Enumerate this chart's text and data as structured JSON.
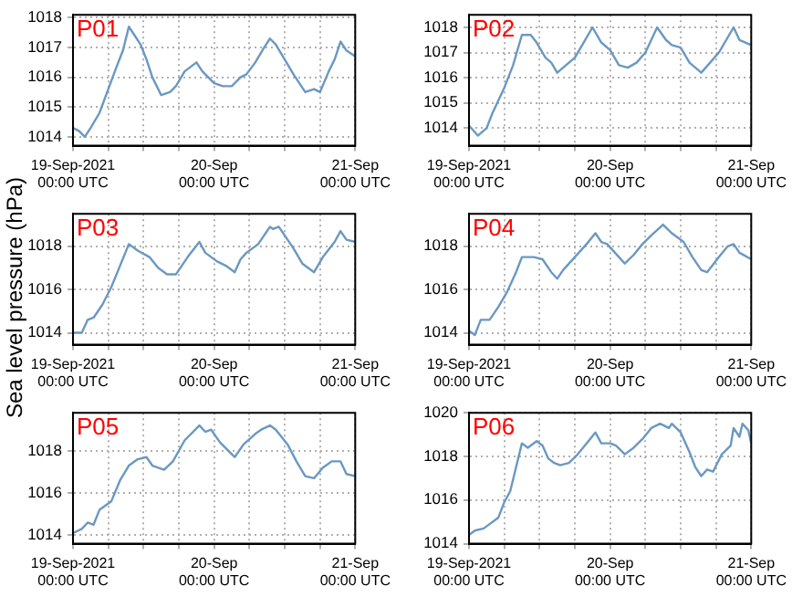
{
  "chart_data": [
    {
      "type": "line",
      "title": "P01",
      "color": "#6a98c2",
      "x": [
        "2021-09-19T00:00",
        "2021-09-19T01:00",
        "2021-09-19T02:00",
        "2021-09-19T03:00",
        "2021-09-19T04:30",
        "2021-09-19T06:00",
        "2021-09-19T07:30",
        "2021-09-19T08:30",
        "2021-09-19T09:30",
        "2021-09-19T10:30",
        "2021-09-19T11:30",
        "2021-09-19T12:30",
        "2021-09-19T13:30",
        "2021-09-19T15:00",
        "2021-09-19T16:30",
        "2021-09-19T17:30",
        "2021-09-19T19:00",
        "2021-09-19T21:00",
        "2021-09-19T22:00",
        "2021-09-20T00:00",
        "2021-09-20T01:30",
        "2021-09-20T03:00",
        "2021-09-20T04:30",
        "2021-09-20T05:30",
        "2021-09-20T07:00",
        "2021-09-20T08:30",
        "2021-09-20T09:30",
        "2021-09-20T10:30",
        "2021-09-20T12:00",
        "2021-09-20T13:30",
        "2021-09-20T15:30",
        "2021-09-20T17:00",
        "2021-09-20T18:00",
        "2021-09-20T19:30",
        "2021-09-20T20:30",
        "2021-09-20T21:30",
        "2021-09-20T22:30",
        "2021-09-21T00:00"
      ],
      "values": [
        1014.3,
        1014.2,
        1014.0,
        1014.3,
        1014.8,
        1015.6,
        1016.4,
        1016.9,
        1017.7,
        1017.4,
        1017.1,
        1016.6,
        1016.0,
        1015.4,
        1015.5,
        1015.7,
        1016.2,
        1016.5,
        1016.2,
        1015.8,
        1015.7,
        1015.7,
        1016.0,
        1016.1,
        1016.5,
        1017.0,
        1017.3,
        1017.1,
        1016.6,
        1016.1,
        1015.5,
        1015.6,
        1015.5,
        1016.2,
        1016.6,
        1017.2,
        1016.9,
        1016.7
      ],
      "xlim": [
        "2021-09-19T00:00",
        "2021-09-21T00:00"
      ],
      "ylim": [
        1013.7,
        1018.1
      ],
      "yticks": [
        1014,
        1015,
        1016,
        1017,
        1018
      ],
      "xticks": [
        {
          "value": "2021-09-19T00:00",
          "label": "19-Sep-2021\n00:00 UTC"
        },
        {
          "value": "2021-09-19T06:00",
          "label": null
        },
        {
          "value": "2021-09-19T12:00",
          "label": null
        },
        {
          "value": "2021-09-19T18:00",
          "label": null
        },
        {
          "value": "2021-09-20T00:00",
          "label": "20-Sep\n00:00 UTC"
        },
        {
          "value": "2021-09-20T06:00",
          "label": null
        },
        {
          "value": "2021-09-20T12:00",
          "label": null
        },
        {
          "value": "2021-09-20T18:00",
          "label": null
        },
        {
          "value": "2021-09-21T00:00",
          "label": "21-Sep\n00:00 UTC"
        }
      ],
      "grid": true,
      "legend": false
    },
    {
      "type": "line",
      "title": "P02",
      "color": "#6a98c2",
      "x": [
        "2021-09-19T00:00",
        "2021-09-19T01:30",
        "2021-09-19T03:00",
        "2021-09-19T04:00",
        "2021-09-19T06:00",
        "2021-09-19T07:30",
        "2021-09-19T09:00",
        "2021-09-19T10:30",
        "2021-09-19T11:30",
        "2021-09-19T13:00",
        "2021-09-19T14:00",
        "2021-09-19T15:00",
        "2021-09-19T16:30",
        "2021-09-19T18:00",
        "2021-09-19T19:30",
        "2021-09-19T21:00",
        "2021-09-19T22:30",
        "2021-09-20T00:00",
        "2021-09-20T01:30",
        "2021-09-20T03:00",
        "2021-09-20T04:30",
        "2021-09-20T06:00",
        "2021-09-20T07:00",
        "2021-09-20T08:00",
        "2021-09-20T09:30",
        "2021-09-20T10:30",
        "2021-09-20T12:00",
        "2021-09-20T13:30",
        "2021-09-20T15:30",
        "2021-09-20T17:00",
        "2021-09-20T18:30",
        "2021-09-20T20:00",
        "2021-09-20T21:00",
        "2021-09-20T22:00",
        "2021-09-21T00:00"
      ],
      "values": [
        1014.1,
        1013.7,
        1014.0,
        1014.6,
        1015.6,
        1016.5,
        1017.7,
        1017.7,
        1017.4,
        1016.8,
        1016.6,
        1016.2,
        1016.5,
        1016.8,
        1017.4,
        1018.0,
        1017.4,
        1017.1,
        1016.5,
        1016.4,
        1016.6,
        1017.0,
        1017.5,
        1018.0,
        1017.5,
        1017.3,
        1017.2,
        1016.6,
        1016.2,
        1016.6,
        1017.0,
        1017.6,
        1018.0,
        1017.5,
        1017.3
      ],
      "xlim": [
        "2021-09-19T00:00",
        "2021-09-21T00:00"
      ],
      "ylim": [
        1013.3,
        1018.5
      ],
      "yticks": [
        1014,
        1015,
        1016,
        1017,
        1018
      ],
      "xticks": [
        {
          "value": "2021-09-19T00:00",
          "label": "19-Sep-2021\n00:00 UTC"
        },
        {
          "value": "2021-09-19T06:00",
          "label": null
        },
        {
          "value": "2021-09-19T12:00",
          "label": null
        },
        {
          "value": "2021-09-19T18:00",
          "label": null
        },
        {
          "value": "2021-09-20T00:00",
          "label": "20-Sep\n00:00 UTC"
        },
        {
          "value": "2021-09-20T06:00",
          "label": null
        },
        {
          "value": "2021-09-20T12:00",
          "label": null
        },
        {
          "value": "2021-09-20T18:00",
          "label": null
        },
        {
          "value": "2021-09-21T00:00",
          "label": "21-Sep\n00:00 UTC"
        }
      ],
      "grid": true,
      "legend": false
    },
    {
      "type": "line",
      "title": "P03",
      "ylabel": "Sea level pressure (hPa)",
      "color": "#6a98c2",
      "x": [
        "2021-09-19T00:00",
        "2021-09-19T01:30",
        "2021-09-19T02:30",
        "2021-09-19T03:30",
        "2021-09-19T05:00",
        "2021-09-19T06:30",
        "2021-09-19T08:00",
        "2021-09-19T09:30",
        "2021-09-19T11:00",
        "2021-09-19T13:00",
        "2021-09-19T14:30",
        "2021-09-19T16:00",
        "2021-09-19T17:30",
        "2021-09-19T19:30",
        "2021-09-19T21:30",
        "2021-09-19T22:30",
        "2021-09-20T00:30",
        "2021-09-20T02:00",
        "2021-09-20T03:30",
        "2021-09-20T04:30",
        "2021-09-20T05:30",
        "2021-09-20T07:30",
        "2021-09-20T08:30",
        "2021-09-20T09:30",
        "2021-09-20T10:00",
        "2021-09-20T11:00",
        "2021-09-20T12:00",
        "2021-09-20T13:30",
        "2021-09-20T15:00",
        "2021-09-20T17:00",
        "2021-09-20T18:30",
        "2021-09-20T20:30",
        "2021-09-20T21:30",
        "2021-09-20T22:30",
        "2021-09-21T00:00"
      ],
      "values": [
        1014.0,
        1014.0,
        1014.6,
        1014.7,
        1015.3,
        1016.1,
        1017.1,
        1018.1,
        1017.8,
        1017.5,
        1017.0,
        1016.7,
        1016.7,
        1017.5,
        1018.2,
        1017.7,
        1017.3,
        1017.1,
        1016.8,
        1017.4,
        1017.7,
        1018.1,
        1018.5,
        1018.9,
        1018.8,
        1018.9,
        1018.5,
        1017.9,
        1017.2,
        1016.8,
        1017.5,
        1018.2,
        1018.7,
        1018.3,
        1018.2
      ],
      "xlim": [
        "2021-09-19T00:00",
        "2021-09-21T00:00"
      ],
      "ylim": [
        1013.45,
        1019.5
      ],
      "yticks": [
        1014,
        1016,
        1018
      ],
      "xticks": [
        {
          "value": "2021-09-19T00:00",
          "label": "19-Sep-2021\n00:00 UTC"
        },
        {
          "value": "2021-09-19T06:00",
          "label": null
        },
        {
          "value": "2021-09-19T12:00",
          "label": null
        },
        {
          "value": "2021-09-19T18:00",
          "label": null
        },
        {
          "value": "2021-09-20T00:00",
          "label": "20-Sep\n00:00 UTC"
        },
        {
          "value": "2021-09-20T06:00",
          "label": null
        },
        {
          "value": "2021-09-20T12:00",
          "label": null
        },
        {
          "value": "2021-09-20T18:00",
          "label": null
        },
        {
          "value": "2021-09-21T00:00",
          "label": "21-Sep\n00:00 UTC"
        }
      ],
      "grid": true,
      "legend": false
    },
    {
      "type": "line",
      "title": "P04",
      "color": "#6a98c2",
      "x": [
        "2021-09-19T00:00",
        "2021-09-19T01:00",
        "2021-09-19T02:00",
        "2021-09-19T03:30",
        "2021-09-19T05:00",
        "2021-09-19T06:30",
        "2021-09-19T08:00",
        "2021-09-19T09:00",
        "2021-09-19T11:00",
        "2021-09-19T12:30",
        "2021-09-19T14:00",
        "2021-09-19T15:00",
        "2021-09-19T16:00",
        "2021-09-19T18:00",
        "2021-09-19T20:00",
        "2021-09-19T21:30",
        "2021-09-19T22:30",
        "2021-09-19T23:30",
        "2021-09-20T01:30",
        "2021-09-20T02:30",
        "2021-09-20T04:00",
        "2021-09-20T05:30",
        "2021-09-20T07:00",
        "2021-09-20T09:00",
        "2021-09-20T10:30",
        "2021-09-20T12:30",
        "2021-09-20T14:00",
        "2021-09-20T15:30",
        "2021-09-20T16:30",
        "2021-09-20T18:30",
        "2021-09-20T20:00",
        "2021-09-20T21:00",
        "2021-09-20T22:00",
        "2021-09-21T00:00"
      ],
      "values": [
        1014.1,
        1013.9,
        1014.6,
        1014.6,
        1015.2,
        1015.9,
        1016.8,
        1017.5,
        1017.5,
        1017.4,
        1016.8,
        1016.5,
        1016.9,
        1017.5,
        1018.1,
        1018.6,
        1018.2,
        1018.1,
        1017.5,
        1017.2,
        1017.6,
        1018.1,
        1018.5,
        1019.0,
        1018.6,
        1018.2,
        1017.5,
        1016.9,
        1016.8,
        1017.5,
        1018.0,
        1018.1,
        1017.7,
        1017.4
      ],
      "xlim": [
        "2021-09-19T00:00",
        "2021-09-21T00:00"
      ],
      "ylim": [
        1013.45,
        1019.5
      ],
      "yticks": [
        1014,
        1016,
        1018
      ],
      "xticks": [
        {
          "value": "2021-09-19T00:00",
          "label": "19-Sep-2021\n00:00 UTC"
        },
        {
          "value": "2021-09-19T06:00",
          "label": null
        },
        {
          "value": "2021-09-19T12:00",
          "label": null
        },
        {
          "value": "2021-09-19T18:00",
          "label": null
        },
        {
          "value": "2021-09-20T00:00",
          "label": "20-Sep\n00:00 UTC"
        },
        {
          "value": "2021-09-20T06:00",
          "label": null
        },
        {
          "value": "2021-09-20T12:00",
          "label": null
        },
        {
          "value": "2021-09-20T18:00",
          "label": null
        },
        {
          "value": "2021-09-21T00:00",
          "label": "21-Sep\n00:00 UTC"
        }
      ],
      "grid": true,
      "legend": false
    },
    {
      "type": "line",
      "title": "P05",
      "color": "#6a98c2",
      "x": [
        "2021-09-19T00:00",
        "2021-09-19T01:30",
        "2021-09-19T02:30",
        "2021-09-19T03:30",
        "2021-09-19T04:30",
        "2021-09-19T06:30",
        "2021-09-19T08:00",
        "2021-09-19T09:30",
        "2021-09-19T11:00",
        "2021-09-19T12:30",
        "2021-09-19T13:30",
        "2021-09-19T15:30",
        "2021-09-19T17:00",
        "2021-09-19T19:00",
        "2021-09-19T21:30",
        "2021-09-19T22:30",
        "2021-09-19T23:30",
        "2021-09-20T01:00",
        "2021-09-20T03:30",
        "2021-09-20T05:00",
        "2021-09-20T07:00",
        "2021-09-20T08:00",
        "2021-09-20T09:30",
        "2021-09-20T10:30",
        "2021-09-20T12:30",
        "2021-09-20T14:00",
        "2021-09-20T15:30",
        "2021-09-20T17:00",
        "2021-09-20T18:30",
        "2021-09-20T20:00",
        "2021-09-20T21:30",
        "2021-09-20T22:30",
        "2021-09-21T00:00"
      ],
      "values": [
        1014.1,
        1014.3,
        1014.6,
        1014.5,
        1015.2,
        1015.6,
        1016.6,
        1017.3,
        1017.6,
        1017.7,
        1017.3,
        1017.1,
        1017.5,
        1018.5,
        1019.2,
        1018.9,
        1019.0,
        1018.4,
        1017.7,
        1018.3,
        1018.8,
        1019.0,
        1019.2,
        1019.0,
        1018.3,
        1017.5,
        1016.8,
        1016.7,
        1017.2,
        1017.5,
        1017.5,
        1016.9,
        1016.8
      ],
      "xlim": [
        "2021-09-19T00:00",
        "2021-09-21T00:00"
      ],
      "ylim": [
        1013.6,
        1019.8
      ],
      "yticks": [
        1014,
        1016,
        1018
      ],
      "xticks": [
        {
          "value": "2021-09-19T00:00",
          "label": "19-Sep-2021\n00:00 UTC"
        },
        {
          "value": "2021-09-19T06:00",
          "label": null
        },
        {
          "value": "2021-09-19T12:00",
          "label": null
        },
        {
          "value": "2021-09-19T18:00",
          "label": null
        },
        {
          "value": "2021-09-20T00:00",
          "label": "20-Sep\n00:00 UTC"
        },
        {
          "value": "2021-09-20T06:00",
          "label": null
        },
        {
          "value": "2021-09-20T12:00",
          "label": null
        },
        {
          "value": "2021-09-20T18:00",
          "label": null
        },
        {
          "value": "2021-09-21T00:00",
          "label": "21-Sep\n00:00 UTC"
        }
      ],
      "grid": true,
      "legend": false
    },
    {
      "type": "line",
      "title": "P06",
      "color": "#6a98c2",
      "x": [
        "2021-09-19T00:00",
        "2021-09-19T01:00",
        "2021-09-19T02:30",
        "2021-09-19T03:30",
        "2021-09-19T05:00",
        "2021-09-19T06:00",
        "2021-09-19T07:00",
        "2021-09-19T08:00",
        "2021-09-19T09:00",
        "2021-09-19T10:00",
        "2021-09-19T11:30",
        "2021-09-19T12:30",
        "2021-09-19T13:30",
        "2021-09-19T14:30",
        "2021-09-19T15:30",
        "2021-09-19T17:00",
        "2021-09-19T18:30",
        "2021-09-19T20:00",
        "2021-09-19T21:30",
        "2021-09-19T22:30",
        "2021-09-20T00:00",
        "2021-09-20T01:00",
        "2021-09-20T02:30",
        "2021-09-20T04:00",
        "2021-09-20T05:30",
        "2021-09-20T07:00",
        "2021-09-20T08:30",
        "2021-09-20T10:00",
        "2021-09-20T10:30",
        "2021-09-20T12:00",
        "2021-09-20T13:30",
        "2021-09-20T14:30",
        "2021-09-20T15:30",
        "2021-09-20T16:30",
        "2021-09-20T17:30",
        "2021-09-20T19:00",
        "2021-09-20T20:30",
        "2021-09-20T21:00",
        "2021-09-20T22:00",
        "2021-09-20T22:30",
        "2021-09-20T23:30",
        "2021-09-21T00:00"
      ],
      "values": [
        1014.4,
        1014.6,
        1014.7,
        1014.9,
        1015.2,
        1015.9,
        1016.4,
        1017.5,
        1018.6,
        1018.4,
        1018.7,
        1018.5,
        1017.9,
        1017.7,
        1017.6,
        1017.7,
        1018.1,
        1018.6,
        1019.1,
        1018.6,
        1018.6,
        1018.5,
        1018.1,
        1018.4,
        1018.8,
        1019.3,
        1019.5,
        1019.3,
        1019.5,
        1019.1,
        1018.2,
        1017.5,
        1017.1,
        1017.4,
        1017.3,
        1018.1,
        1018.5,
        1019.3,
        1018.9,
        1019.5,
        1019.2,
        1018.6
      ],
      "xlim": [
        "2021-09-19T00:00",
        "2021-09-21T00:00"
      ],
      "ylim": [
        1014,
        1020
      ],
      "yticks": [
        1014,
        1016,
        1018,
        1020
      ],
      "xticks": [
        {
          "value": "2021-09-19T00:00",
          "label": "19-Sep-2021\n00:00 UTC"
        },
        {
          "value": "2021-09-19T06:00",
          "label": null
        },
        {
          "value": "2021-09-19T12:00",
          "label": null
        },
        {
          "value": "2021-09-19T18:00",
          "label": null
        },
        {
          "value": "2021-09-20T00:00",
          "label": "20-Sep\n00:00 UTC"
        },
        {
          "value": "2021-09-20T06:00",
          "label": null
        },
        {
          "value": "2021-09-20T12:00",
          "label": null
        },
        {
          "value": "2021-09-20T18:00",
          "label": null
        },
        {
          "value": "2021-09-21T00:00",
          "label": "21-Sep\n00:00 UTC"
        }
      ],
      "grid": true,
      "legend": false
    }
  ]
}
